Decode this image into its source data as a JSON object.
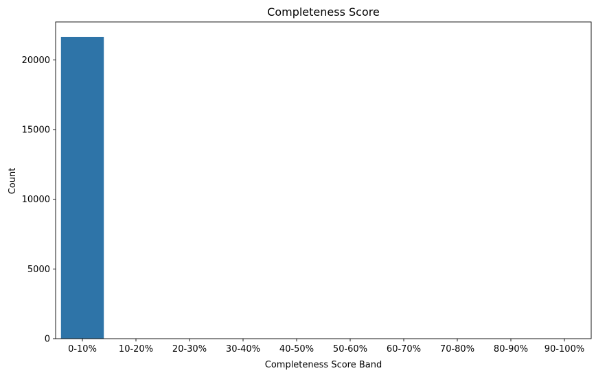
{
  "chart_data": {
    "type": "bar",
    "title": "Completeness Score",
    "xlabel": "Completeness Score Band",
    "ylabel": "Count",
    "categories": [
      "0-10%",
      "10-20%",
      "20-30%",
      "30-40%",
      "40-50%",
      "50-60%",
      "60-70%",
      "70-80%",
      "80-90%",
      "90-100%"
    ],
    "values": [
      21640,
      0,
      0,
      0,
      0,
      0,
      0,
      0,
      0,
      0
    ],
    "yticks": [
      0,
      5000,
      10000,
      15000,
      20000
    ],
    "ylim": [
      0,
      22720
    ],
    "grid": false,
    "bar_color": "#2e74a8"
  }
}
